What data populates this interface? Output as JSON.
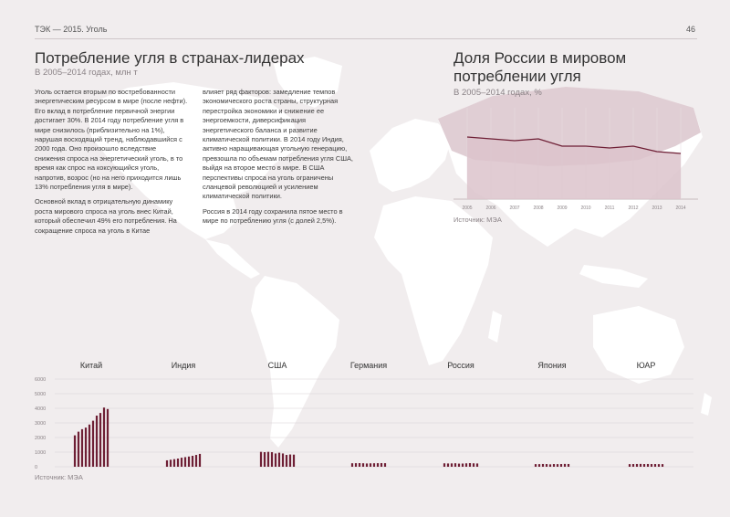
{
  "header": {
    "section": "ТЭК — 2015. Уголь",
    "page_number": "46"
  },
  "left": {
    "title": "Потребление угля в странах-лидерах",
    "subtitle": "В 2005–2014 годах, млн т",
    "col1_p1": "Уголь остается вторым по востребованности энергетическим ресурсом в мире (после нефти). Его вклад в потребление первичной энергии достигает 30%. В 2014 году потребление угля в мире снизилось (приблизительно на 1%), нарушая восходящий тренд, наблюдавшийся с 2000 года. Оно произошло вследствие снижения спроса на энергетический уголь, в то время как спрос на коксующийся уголь, напротив, возрос (но на него приходится лишь 13% потребления угля в мире).",
    "col1_p2": "Основной вклад в отрицательную динамику роста мирового спроса на уголь внес Китай, который обеспечил 49% его потребления. На сокращение спроса на уголь в Китае",
    "col2_p1": "влияет ряд факторов: замедление темпов экономического роста страны, структурная перестройка экономики и снижение ее энергоемкости, диверсификация энергетического баланса и развитие климатической политики. В 2014 году Индия, активно наращивающая угольную генерацию, превзошла по объемам потребления угля США, выйдя на второе место в мире. В США перспективы спроса на уголь ограничены сланцевой революцией и усилением климатической политики.",
    "col2_p2": "Россия в 2014 году сохранила пятое место в мире по потреблению угля (с долей 2,5%)."
  },
  "right": {
    "title_line1": "Доля России в мировом",
    "title_line2": "потреблении угля",
    "subtitle": "В 2005–2014 годах, %",
    "source": "Источник: МЭА"
  },
  "bottom": {
    "source": "Источник: МЭА"
  },
  "colors": {
    "bar": "#6e1f35",
    "area": "#dcc3cb",
    "line": "#6e1f35",
    "map": "#ffffff",
    "background": "#f1edee"
  },
  "chart_data": [
    {
      "type": "bar",
      "title": "Потребление угля в странах-лидерах",
      "subtitle": "В 2005–2014 годах, млн т",
      "group_labels": [
        "Китай",
        "Индия",
        "США",
        "Германия",
        "Россия",
        "Япония",
        "ЮАР"
      ],
      "years": [
        "2005",
        "2006",
        "2007",
        "2008",
        "2009",
        "2010",
        "2011",
        "2012",
        "2013",
        "2014"
      ],
      "y_ticks": [
        "0",
        "1000",
        "2000",
        "3000",
        "4000",
        "5000",
        "6000"
      ],
      "ylim": [
        0,
        6000
      ],
      "grid": true,
      "series": [
        {
          "name": "Китай",
          "values": [
            2150,
            2400,
            2570,
            2680,
            2890,
            3150,
            3500,
            3680,
            4050,
            3950
          ]
        },
        {
          "name": "Индия",
          "values": [
            440,
            480,
            520,
            560,
            620,
            660,
            700,
            750,
            810,
            880
          ]
        },
        {
          "name": "США",
          "values": [
            1020,
            1000,
            1020,
            1000,
            910,
            960,
            910,
            810,
            840,
            830
          ]
        },
        {
          "name": "Германия",
          "values": [
            240,
            245,
            250,
            240,
            225,
            235,
            240,
            245,
            250,
            245
          ]
        },
        {
          "name": "Россия",
          "values": [
            235,
            225,
            230,
            240,
            215,
            220,
            235,
            250,
            235,
            225
          ]
        },
        {
          "name": "Япония",
          "values": [
            180,
            180,
            190,
            185,
            165,
            185,
            180,
            185,
            195,
            190
          ]
        },
        {
          "name": "ЮАР",
          "values": [
            180,
            185,
            190,
            195,
            185,
            190,
            185,
            185,
            180,
            180
          ]
        }
      ]
    },
    {
      "type": "area",
      "title": "Доля России в мировом потреблении угля",
      "subtitle": "В 2005–2014 годах, %",
      "x": [
        "2005",
        "2006",
        "2007",
        "2008",
        "2009",
        "2010",
        "2011",
        "2012",
        "2013",
        "2014"
      ],
      "values": [
        3.4,
        3.3,
        3.2,
        3.3,
        2.9,
        2.9,
        2.8,
        2.9,
        2.6,
        2.5
      ],
      "ylim": [
        0,
        5
      ]
    }
  ]
}
